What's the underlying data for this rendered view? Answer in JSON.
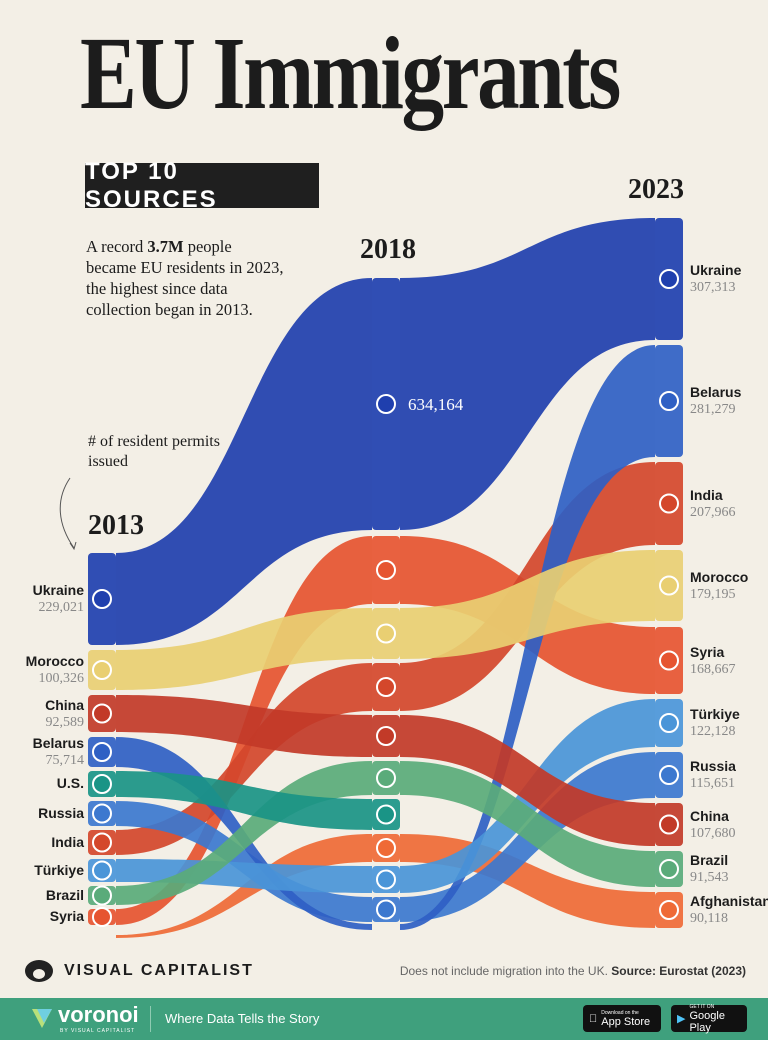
{
  "title": "EU Immigrants",
  "subtitle": "TOP 10 SOURCES",
  "description": {
    "pre": "A record ",
    "bold": "3.7M",
    "post": " people became EU residents in 2023, the highest since data collection began in 2013."
  },
  "annotation": "# of resident permits issued",
  "chart_data": {
    "type": "sankey",
    "columns": [
      "2013",
      "2018",
      "2023"
    ],
    "colors": {
      "Ukraine": "#1f3fae",
      "Morocco": "#e9cf72",
      "China": "#c23a28",
      "Belarus": "#2f60c4",
      "U.S.": "#1a9486",
      "Russia": "#3c78cf",
      "India": "#d4472b",
      "Türkiye": "#4a95d8",
      "Brazil": "#5aab7a",
      "Syria": "#e65430",
      "Afghanistan": "#ef6a36"
    },
    "y2013": [
      {
        "name": "Ukraine",
        "value": "229,021"
      },
      {
        "name": "Morocco",
        "value": "100,326"
      },
      {
        "name": "China",
        "value": "92,589"
      },
      {
        "name": "Belarus",
        "value": "75,714"
      },
      {
        "name": "U.S."
      },
      {
        "name": "Russia"
      },
      {
        "name": "India"
      },
      {
        "name": "Türkiye"
      },
      {
        "name": "Brazil"
      },
      {
        "name": "Syria"
      }
    ],
    "y2018": [
      {
        "name": "Ukraine",
        "value": "634,164"
      },
      {
        "name": "Syria"
      },
      {
        "name": "Morocco"
      },
      {
        "name": "India"
      },
      {
        "name": "China"
      },
      {
        "name": "Brazil"
      },
      {
        "name": "U.S."
      },
      {
        "name": "Afghanistan"
      },
      {
        "name": "Türkiye"
      },
      {
        "name": "Russia"
      }
    ],
    "y2023": [
      {
        "name": "Ukraine",
        "value": "307,313"
      },
      {
        "name": "Belarus",
        "value": "281,279"
      },
      {
        "name": "India",
        "value": "207,966"
      },
      {
        "name": "Morocco",
        "value": "179,195"
      },
      {
        "name": "Syria",
        "value": "168,667"
      },
      {
        "name": "Türkiye",
        "value": "122,128"
      },
      {
        "name": "Russia",
        "value": "115,651"
      },
      {
        "name": "China",
        "value": "107,680"
      },
      {
        "name": "Brazil",
        "value": "91,543"
      },
      {
        "name": "Afghanistan",
        "value": "90,118"
      }
    ]
  },
  "footer": {
    "brand": "VISUAL CAPITALIST",
    "note": "Does not include migration into the UK.",
    "source": "Source: Eurostat (2023)",
    "voronoi": "voronoi",
    "voronoi_sub": "BY VISUAL CAPITALIST",
    "tagline": "Where Data Tells the Story",
    "appstore_small": "Download on the",
    "appstore": "App Store",
    "gplay_small": "GET IT ON",
    "gplay": "Google Play"
  }
}
